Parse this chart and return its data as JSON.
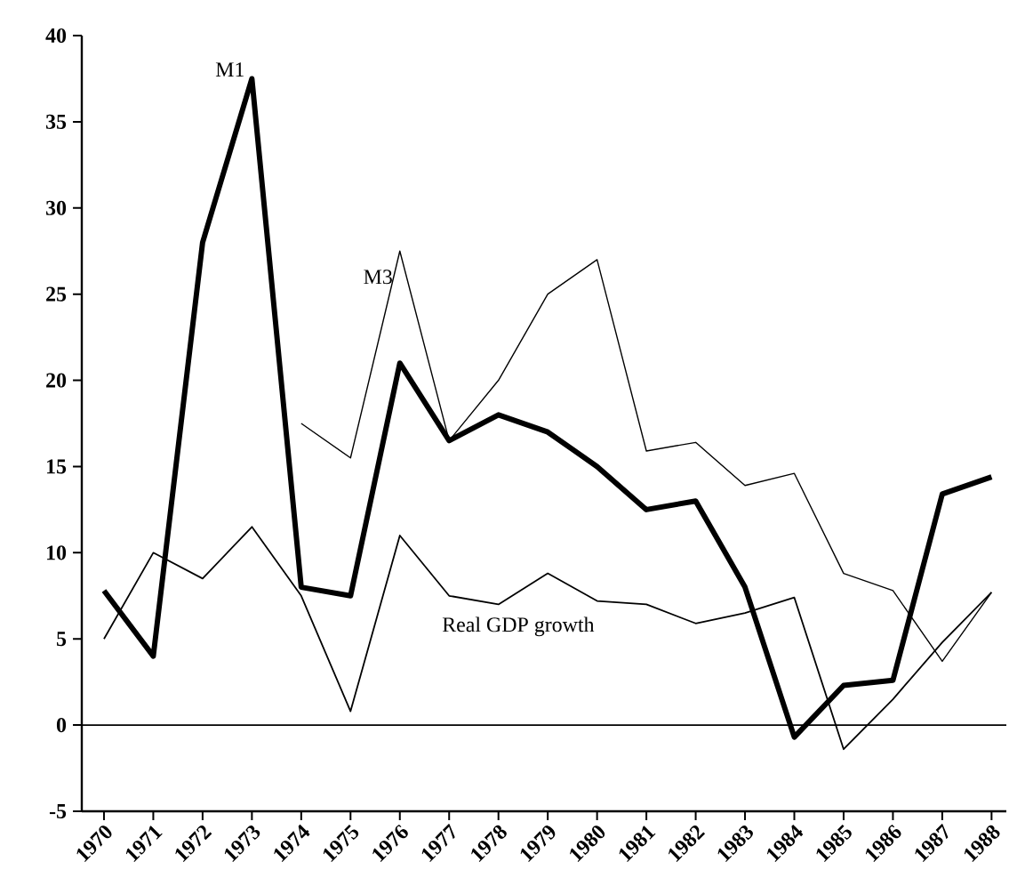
{
  "chart_data": {
    "type": "line",
    "categories": [
      "1970",
      "1971",
      "1972",
      "1973",
      "1974",
      "1975",
      "1976",
      "1977",
      "1978",
      "1979",
      "1980",
      "1981",
      "1982",
      "1983",
      "1984",
      "1985",
      "1986",
      "1987",
      "1988"
    ],
    "series": [
      {
        "name": "M1",
        "color": "#000000",
        "values": [
          7.8,
          4,
          28,
          37.5,
          8,
          7.5,
          21,
          16.5,
          18,
          17,
          15,
          12.5,
          13,
          8,
          -0.7,
          2.3,
          2.6,
          13.4,
          14.4
        ]
      },
      {
        "name": "M3",
        "color": "#000000",
        "values": [
          null,
          null,
          null,
          null,
          17.5,
          15.5,
          27.5,
          16.5,
          20,
          25,
          27,
          15.9,
          16.4,
          13.9,
          14.6,
          8.8,
          7.8,
          3.7,
          7.7
        ]
      },
      {
        "name": "Real GDP growth",
        "color": "#000000",
        "values": [
          5,
          10,
          8.5,
          11.5,
          7.5,
          0.8,
          11,
          7.5,
          7,
          8.8,
          7.2,
          7,
          5.9,
          6.5,
          7.4,
          -1.4,
          1.5,
          4.8,
          7.7
        ]
      }
    ],
    "ylim": [
      -5,
      40
    ],
    "yticks": [
      -5,
      0,
      5,
      10,
      15,
      20,
      25,
      30,
      35,
      40
    ],
    "ref_lines": [
      {
        "axis": "y",
        "value": 0,
        "color": "#000000"
      }
    ],
    "grid": false,
    "marker": "none",
    "line_style": "solid"
  }
}
